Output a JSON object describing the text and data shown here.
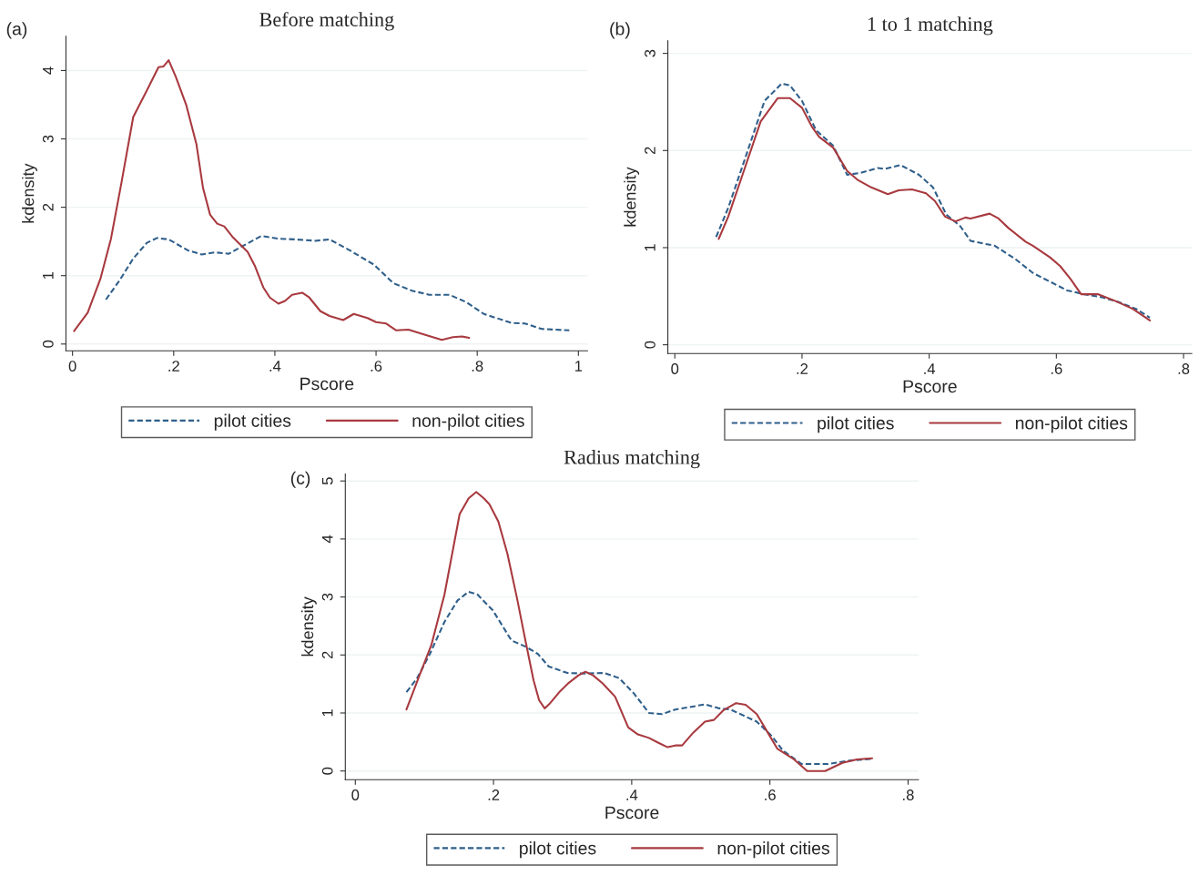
{
  "chart_data": [
    {
      "type": "line",
      "title": "Before matching",
      "xlabel": "Pscore",
      "ylabel": "kdensity",
      "annotations": [
        "(a)"
      ],
      "xlim": [
        -0.013,
        1.018
      ],
      "xticks": [
        0,
        {
          "value": 0.2,
          "label": ".2"
        },
        {
          "value": 0.4,
          "label": ".4"
        },
        {
          "value": 0.6,
          "label": ".6"
        },
        {
          "value": 0.8,
          "label": ".8"
        },
        1
      ],
      "ylim": [
        -0.1,
        4.5
      ],
      "yticks": [
        0,
        1,
        2,
        3,
        4
      ],
      "grid": "y",
      "legend": "bottom",
      "marker": "none",
      "series": [
        {
          "name": "pilot cities",
          "color": "#2f5f8a",
          "line_style": "dashed",
          "x": [
            0.066,
            0.093,
            0.12,
            0.147,
            0.167,
            0.19,
            0.228,
            0.255,
            0.282,
            0.309,
            0.333,
            0.373,
            0.407,
            0.44,
            0.48,
            0.508,
            0.548,
            0.596,
            0.634,
            0.671,
            0.705,
            0.745,
            0.779,
            0.813,
            0.867,
            0.894,
            0.928,
            0.982
          ],
          "values": [
            0.65,
            0.93,
            1.25,
            1.48,
            1.55,
            1.53,
            1.37,
            1.31,
            1.34,
            1.32,
            1.42,
            1.58,
            1.54,
            1.53,
            1.51,
            1.53,
            1.37,
            1.16,
            0.89,
            0.78,
            0.72,
            0.72,
            0.61,
            0.44,
            0.31,
            0.3,
            0.22,
            0.2
          ]
        },
        {
          "name": "non-pilot cities",
          "color": "#a83a3f",
          "line_style": "solid",
          "x": [
            0.003,
            0.03,
            0.055,
            0.076,
            0.096,
            0.12,
            0.147,
            0.17,
            0.18,
            0.19,
            0.204,
            0.225,
            0.245,
            0.258,
            0.272,
            0.286,
            0.3,
            0.316,
            0.346,
            0.36,
            0.377,
            0.39,
            0.407,
            0.42,
            0.434,
            0.454,
            0.468,
            0.49,
            0.508,
            0.535,
            0.556,
            0.583,
            0.6,
            0.62,
            0.64,
            0.664,
            0.69,
            0.73,
            0.752,
            0.77,
            0.784
          ],
          "values": [
            0.19,
            0.46,
            0.95,
            1.54,
            2.33,
            3.32,
            3.71,
            4.05,
            4.06,
            4.15,
            3.91,
            3.49,
            2.92,
            2.28,
            1.89,
            1.76,
            1.72,
            1.57,
            1.35,
            1.15,
            0.83,
            0.68,
            0.59,
            0.63,
            0.72,
            0.75,
            0.68,
            0.48,
            0.41,
            0.35,
            0.44,
            0.38,
            0.32,
            0.3,
            0.2,
            0.21,
            0.15,
            0.06,
            0.1,
            0.11,
            0.09
          ]
        }
      ]
    },
    {
      "type": "line",
      "title": "1 to 1 matching",
      "xlabel": "Pscore",
      "ylabel": "kdensity",
      "annotations": [
        "(b)"
      ],
      "xlim": [
        -0.011,
        0.813
      ],
      "xticks": [
        0,
        {
          "value": 0.2,
          "label": ".2"
        },
        {
          "value": 0.4,
          "label": ".4"
        },
        {
          "value": 0.6,
          "label": ".6"
        },
        {
          "value": 0.8,
          "label": ".8"
        }
      ],
      "ylim": [
        -0.09,
        3.13
      ],
      "yticks": [
        0,
        1,
        2,
        3
      ],
      "grid": "y",
      "legend": "bottom",
      "marker": "none",
      "series": [
        {
          "name": "pilot cities",
          "color": "#2f5f8a",
          "line_style": "dashed",
          "x": [
            0.065,
            0.084,
            0.108,
            0.141,
            0.168,
            0.181,
            0.2,
            0.222,
            0.249,
            0.271,
            0.292,
            0.319,
            0.33,
            0.355,
            0.384,
            0.406,
            0.427,
            0.449,
            0.465,
            0.487,
            0.503,
            0.536,
            0.563,
            0.59,
            0.617,
            0.644,
            0.671,
            0.698,
            0.725,
            0.747
          ],
          "values": [
            1.11,
            1.41,
            1.87,
            2.51,
            2.69,
            2.67,
            2.51,
            2.21,
            2.05,
            1.75,
            1.77,
            1.82,
            1.81,
            1.85,
            1.75,
            1.62,
            1.34,
            1.22,
            1.07,
            1.04,
            1.02,
            0.88,
            0.74,
            0.65,
            0.56,
            0.52,
            0.49,
            0.44,
            0.37,
            0.28
          ]
        },
        {
          "name": "non-pilot cities",
          "color": "#a83a3f",
          "line_style": "solid",
          "x": [
            0.069,
            0.084,
            0.108,
            0.135,
            0.162,
            0.181,
            0.2,
            0.216,
            0.227,
            0.249,
            0.271,
            0.287,
            0.309,
            0.335,
            0.352,
            0.373,
            0.395,
            0.409,
            0.425,
            0.441,
            0.457,
            0.465,
            0.495,
            0.509,
            0.525,
            0.552,
            0.563,
            0.59,
            0.606,
            0.622,
            0.639,
            0.666,
            0.693,
            0.72,
            0.747
          ],
          "values": [
            1.09,
            1.32,
            1.78,
            2.3,
            2.54,
            2.54,
            2.44,
            2.24,
            2.14,
            2.03,
            1.79,
            1.7,
            1.62,
            1.55,
            1.59,
            1.6,
            1.56,
            1.48,
            1.32,
            1.27,
            1.31,
            1.3,
            1.35,
            1.3,
            1.2,
            1.06,
            1.02,
            0.9,
            0.81,
            0.68,
            0.52,
            0.52,
            0.45,
            0.37,
            0.25
          ]
        }
      ]
    },
    {
      "type": "line",
      "title": "Radius matching",
      "xlabel": "Pscore",
      "ylabel": "kdensity",
      "annotations": [
        "(c)"
      ],
      "xlim": [
        -0.0145,
        0.815
      ],
      "xticks": [
        0,
        {
          "value": 0.2,
          "label": ".2"
        },
        {
          "value": 0.4,
          "label": ".4"
        },
        {
          "value": 0.6,
          "label": ".6"
        },
        {
          "value": 0.8,
          "label": ".8"
        }
      ],
      "ylim": [
        -0.15,
        5.12
      ],
      "yticks": [
        0,
        1,
        2,
        3,
        4,
        5
      ],
      "grid": "y",
      "legend": "bottom",
      "marker": "none",
      "series": [
        {
          "name": "pilot cities",
          "color": "#2f5f8a",
          "line_style": "dashed",
          "x": [
            0.074,
            0.089,
            0.108,
            0.129,
            0.148,
            0.164,
            0.177,
            0.199,
            0.226,
            0.247,
            0.264,
            0.28,
            0.307,
            0.333,
            0.36,
            0.382,
            0.403,
            0.425,
            0.444,
            0.463,
            0.484,
            0.506,
            0.527,
            0.543,
            0.581,
            0.603,
            0.619,
            0.646,
            0.684,
            0.715,
            0.748
          ],
          "values": [
            1.36,
            1.59,
            2.02,
            2.57,
            2.94,
            3.09,
            3.04,
            2.77,
            2.25,
            2.14,
            2.02,
            1.8,
            1.69,
            1.68,
            1.69,
            1.6,
            1.34,
            1.0,
            0.98,
            1.06,
            1.1,
            1.15,
            1.08,
            1.06,
            0.85,
            0.6,
            0.35,
            0.12,
            0.12,
            0.18,
            0.21
          ]
        },
        {
          "name": "non-pilot cities",
          "color": "#a83a3f",
          "line_style": "solid",
          "x": [
            0.074,
            0.091,
            0.11,
            0.129,
            0.151,
            0.164,
            0.175,
            0.186,
            0.194,
            0.207,
            0.22,
            0.234,
            0.247,
            0.258,
            0.266,
            0.274,
            0.282,
            0.296,
            0.309,
            0.323,
            0.333,
            0.344,
            0.358,
            0.376,
            0.395,
            0.409,
            0.425,
            0.438,
            0.452,
            0.463,
            0.473,
            0.489,
            0.506,
            0.519,
            0.533,
            0.551,
            0.565,
            0.581,
            0.597,
            0.611,
            0.635,
            0.654,
            0.68,
            0.705,
            0.726,
            0.748
          ],
          "values": [
            1.06,
            1.59,
            2.17,
            3.04,
            4.43,
            4.7,
            4.81,
            4.7,
            4.6,
            4.3,
            3.75,
            2.98,
            2.2,
            1.56,
            1.22,
            1.08,
            1.17,
            1.37,
            1.52,
            1.65,
            1.71,
            1.65,
            1.51,
            1.28,
            0.75,
            0.63,
            0.57,
            0.49,
            0.41,
            0.44,
            0.44,
            0.66,
            0.85,
            0.88,
            1.05,
            1.17,
            1.14,
            0.98,
            0.66,
            0.38,
            0.2,
            0,
            0,
            0.14,
            0.2,
            0.22
          ]
        }
      ]
    }
  ]
}
